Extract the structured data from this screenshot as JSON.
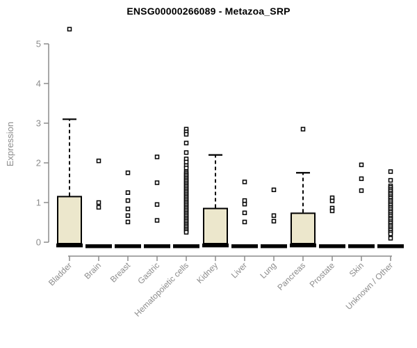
{
  "header": {
    "title": "ENSG00000266089 - Metazoa_SRP"
  },
  "colors": {
    "box_fill": "#ece7cc",
    "box_border": "#000000",
    "median": "#000000",
    "whisker": "#000000",
    "outlier_stroke": "#000000",
    "outlier_fill": "#ffffff",
    "axis": "#8c8c8c",
    "tick_label": "#8c8c8c",
    "title": "#000000",
    "background": "#ffffff"
  },
  "chart_data": {
    "type": "boxplot",
    "title": "ENSG00000266089 - Metazoa_SRP",
    "xlabel": "",
    "ylabel": "Expression",
    "ylim": [
      0,
      5.4
    ],
    "yticks": [
      0,
      1,
      2,
      3,
      4,
      5
    ],
    "grid": false,
    "legend": null,
    "categories": [
      "Bladder",
      "Brain",
      "Breast",
      "Gastric",
      "Hematopoietic cells",
      "Kidney",
      "Liver",
      "Lung",
      "Pancreas",
      "Prostate",
      "Skin",
      "Unknown / Other"
    ],
    "series": [
      {
        "name": "Bladder",
        "q1": 0,
        "median": 0.02,
        "q3": 1.15,
        "whisker_low": 0,
        "whisker_high": 3.1,
        "outliers": [
          5.37
        ]
      },
      {
        "name": "Brain",
        "q1": 0,
        "median": 0,
        "q3": 0,
        "whisker_low": 0,
        "whisker_high": 0,
        "outliers": [
          2.05,
          1.0,
          0.88
        ]
      },
      {
        "name": "Breast",
        "q1": 0,
        "median": 0,
        "q3": 0,
        "whisker_low": 0,
        "whisker_high": 0,
        "outliers": [
          1.75,
          1.25,
          1.05,
          0.84,
          0.67,
          0.51
        ]
      },
      {
        "name": "Gastric",
        "q1": 0,
        "median": 0,
        "q3": 0,
        "whisker_low": 0,
        "whisker_high": 0,
        "outliers": [
          2.15,
          1.5,
          0.95,
          0.55
        ]
      },
      {
        "name": "Hematopoietic cells",
        "q1": 0,
        "median": 0,
        "q3": 0,
        "whisker_low": 0,
        "whisker_high": 0,
        "outliers": [
          2.85,
          2.78,
          2.72,
          2.5,
          2.26,
          2.1,
          2.02,
          1.93,
          1.87,
          1.77,
          1.73,
          1.69,
          1.65,
          1.61,
          1.57,
          1.53,
          1.49,
          1.45,
          1.41,
          1.37,
          1.33,
          1.29,
          1.25,
          1.21,
          1.17,
          1.13,
          1.09,
          1.05,
          1.01,
          0.97,
          0.93,
          0.89,
          0.85,
          0.81,
          0.77,
          0.73,
          0.69,
          0.65,
          0.61,
          0.57,
          0.53,
          0.49,
          0.45,
          0.41,
          0.37,
          0.33,
          0.29,
          0.25
        ]
      },
      {
        "name": "Kidney",
        "q1": 0,
        "median": 0.02,
        "q3": 0.85,
        "whisker_low": 0,
        "whisker_high": 2.2,
        "outliers": []
      },
      {
        "name": "Liver",
        "q1": 0,
        "median": 0,
        "q3": 0,
        "whisker_low": 0,
        "whisker_high": 0,
        "outliers": [
          1.52,
          1.05,
          0.96,
          0.74,
          0.51
        ]
      },
      {
        "name": "Lung",
        "q1": 0,
        "median": 0,
        "q3": 0,
        "whisker_low": 0,
        "whisker_high": 0,
        "outliers": [
          1.32,
          0.67,
          0.53
        ]
      },
      {
        "name": "Pancreas",
        "q1": 0,
        "median": 0.02,
        "q3": 0.73,
        "whisker_low": 0,
        "whisker_high": 1.75,
        "outliers": [
          2.85
        ]
      },
      {
        "name": "Prostate",
        "q1": 0,
        "median": 0,
        "q3": 0,
        "whisker_low": 0,
        "whisker_high": 0,
        "outliers": [
          1.12,
          1.04,
          0.86,
          0.79
        ]
      },
      {
        "name": "Skin",
        "q1": 0,
        "median": 0,
        "q3": 0,
        "whisker_low": 0,
        "whisker_high": 0,
        "outliers": [
          1.95,
          1.6,
          1.3
        ]
      },
      {
        "name": "Unknown / Other",
        "q1": 0,
        "median": 0,
        "q3": 0,
        "whisker_low": 0,
        "whisker_high": 0,
        "outliers": [
          1.78,
          1.56,
          1.42,
          1.38,
          1.33,
          1.29,
          1.24,
          1.2,
          1.15,
          1.11,
          1.06,
          1.02,
          0.97,
          0.93,
          0.88,
          0.84,
          0.79,
          0.75,
          0.7,
          0.66,
          0.61,
          0.57,
          0.52,
          0.48,
          0.43,
          0.39,
          0.34,
          0.3,
          0.25,
          0.21,
          0.1
        ]
      }
    ]
  }
}
